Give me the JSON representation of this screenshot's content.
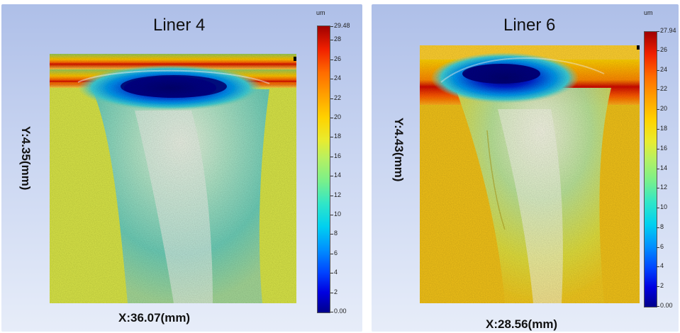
{
  "panels": [
    {
      "title": "Liner 4",
      "x_label": "X:36.07(mm)",
      "y_label": "Y:4.35(mm)",
      "unit": "um",
      "scale_max_label": "29.48",
      "scale_ticks": [
        "28",
        "26",
        "24",
        "22",
        "20",
        "18",
        "16",
        "14",
        "12",
        "10",
        "8",
        "6",
        "4",
        "2",
        "0.00"
      ]
    },
    {
      "title": "Liner 6",
      "x_label": "X:28.56(mm)",
      "y_label": "Y:4.43(mm)",
      "unit": "um",
      "scale_max_label": "27.94",
      "scale_ticks": [
        "26",
        "24",
        "22",
        "20",
        "18",
        "16",
        "14",
        "12",
        "10",
        "8",
        "6",
        "4",
        "2",
        "0.00"
      ]
    }
  ],
  "colors": {
    "panel_background": "#c9d5f1",
    "surface_high": "#a00000",
    "surface_mid": "#ffd200",
    "surface_low": "#00008b"
  }
}
